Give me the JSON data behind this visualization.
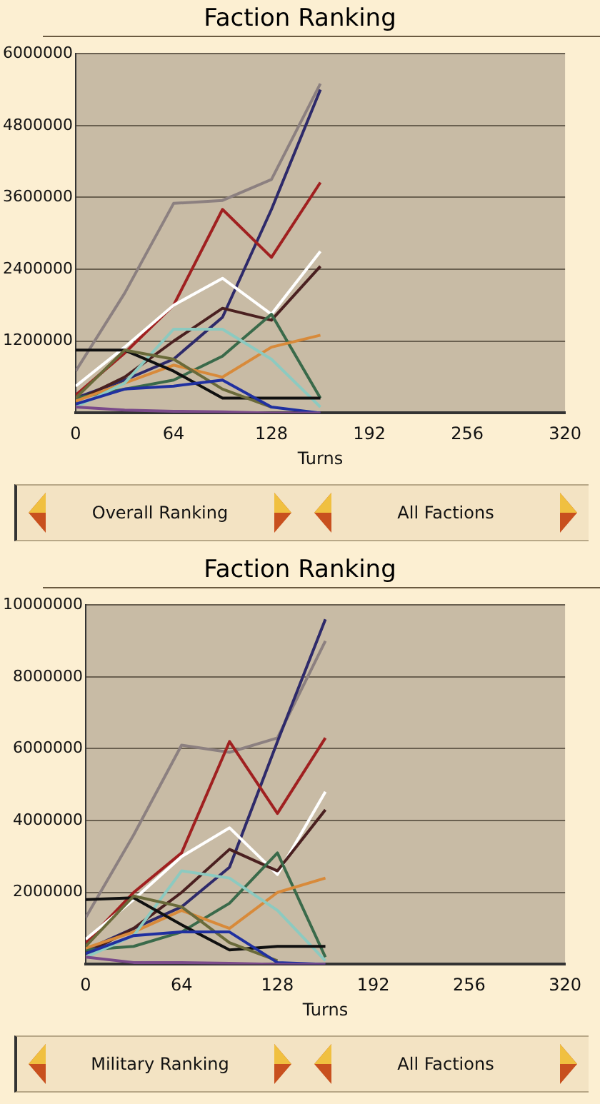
{
  "chart_data": [
    {
      "type": "line",
      "title": "Faction Ranking",
      "xlabel": "Turns",
      "x": [
        0,
        32,
        64,
        96,
        128,
        160
      ],
      "xlim": [
        0,
        320
      ],
      "xticks": [
        0,
        64,
        128,
        192,
        256,
        320
      ],
      "ylim": [
        0,
        6000000
      ],
      "yticks": [
        {
          "value": 0,
          "label": null
        },
        1200000,
        2400000,
        3600000,
        4800000,
        6000000
      ],
      "grid": "y",
      "legend": false,
      "marker": "none",
      "annotations": [
        "Overall Ranking",
        "All Factions"
      ],
      "series": [
        {
          "color": "#8c8080",
          "values": [
            700000,
            2000000,
            3500000,
            3550000,
            3900000,
            5500000
          ]
        },
        {
          "color": "#2e2a6a",
          "values": [
            250000,
            550000,
            900000,
            1600000,
            3400000,
            5400000
          ]
        },
        {
          "color": "#a02020",
          "values": [
            300000,
            1000000,
            1800000,
            3400000,
            2600000,
            3850000
          ]
        },
        {
          "color": "#ffffff",
          "values": [
            450000,
            1100000,
            1800000,
            2250000,
            1650000,
            2700000
          ]
        },
        {
          "color": "#4a2020",
          "values": [
            200000,
            600000,
            1200000,
            1750000,
            1550000,
            2450000
          ]
        },
        {
          "color": "#3a6a4a",
          "values": [
            250000,
            400000,
            550000,
            950000,
            1650000,
            250000
          ]
        },
        {
          "color": "#d88a3a",
          "values": [
            200000,
            500000,
            800000,
            600000,
            1100000,
            1300000
          ]
        },
        {
          "color": "#8ccac0",
          "values": [
            100000,
            500000,
            1400000,
            1400000,
            900000,
            100000
          ]
        },
        {
          "color": "#101010",
          "values": [
            1050000,
            1050000,
            700000,
            250000,
            250000,
            250000
          ]
        },
        {
          "color": "#6a6a3a",
          "values": [
            250000,
            1050000,
            900000,
            400000,
            100000,
            null
          ]
        },
        {
          "color": "#2030a0",
          "values": [
            150000,
            400000,
            450000,
            550000,
            100000,
            0
          ]
        },
        {
          "color": "#7a4a8a",
          "values": [
            100000,
            50000,
            30000,
            20000,
            0,
            0
          ]
        }
      ]
    },
    {
      "type": "line",
      "title": "Faction Ranking",
      "xlabel": "Turns",
      "x": [
        0,
        32,
        64,
        96,
        128,
        160
      ],
      "xlim": [
        0,
        320
      ],
      "xticks": [
        0,
        64,
        128,
        192,
        256,
        320
      ],
      "ylim": [
        0,
        10000000
      ],
      "yticks": [
        {
          "value": 0,
          "label": null
        },
        2000000,
        4000000,
        6000000,
        8000000,
        10000000
      ],
      "grid": "y",
      "legend": false,
      "marker": "none",
      "annotations": [
        "Military Ranking",
        "All Factions"
      ],
      "series": [
        {
          "color": "#8c8080",
          "values": [
            1300000,
            3600000,
            6100000,
            5900000,
            6300000,
            9000000
          ]
        },
        {
          "color": "#2e2a6a",
          "values": [
            400000,
            1000000,
            1600000,
            2700000,
            6200000,
            9600000
          ]
        },
        {
          "color": "#a02020",
          "values": [
            600000,
            2000000,
            3100000,
            6200000,
            4200000,
            6300000
          ]
        },
        {
          "color": "#ffffff",
          "values": [
            700000,
            1800000,
            3000000,
            3800000,
            2500000,
            4800000
          ]
        },
        {
          "color": "#4a2020",
          "values": [
            300000,
            1000000,
            2000000,
            3200000,
            2600000,
            4300000
          ]
        },
        {
          "color": "#3a6a4a",
          "values": [
            400000,
            500000,
            900000,
            1700000,
            3100000,
            200000
          ]
        },
        {
          "color": "#d88a3a",
          "values": [
            450000,
            900000,
            1500000,
            1000000,
            2000000,
            2400000
          ]
        },
        {
          "color": "#8ccac0",
          "values": [
            200000,
            800000,
            2600000,
            2400000,
            1500000,
            100000
          ]
        },
        {
          "color": "#101010",
          "values": [
            1800000,
            1850000,
            1100000,
            400000,
            500000,
            500000
          ]
        },
        {
          "color": "#6a6a3a",
          "values": [
            500000,
            1900000,
            1600000,
            600000,
            100000,
            null
          ]
        },
        {
          "color": "#2030a0",
          "values": [
            300000,
            800000,
            900000,
            900000,
            50000,
            0
          ]
        },
        {
          "color": "#7a4a8a",
          "values": [
            200000,
            50000,
            50000,
            30000,
            0,
            0
          ]
        }
      ]
    }
  ]
}
